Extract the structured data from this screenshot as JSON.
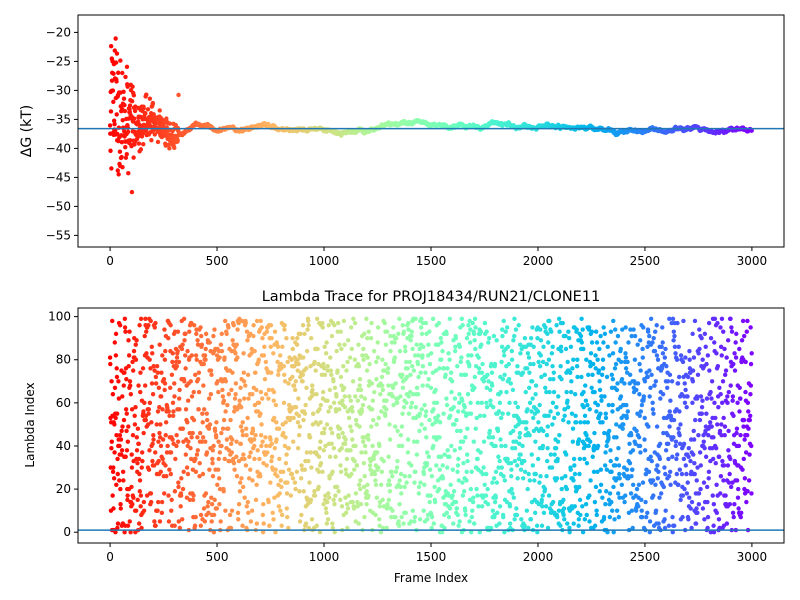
{
  "chart_data": [
    {
      "type": "scatter",
      "title": "",
      "xlabel": "",
      "ylabel": "ΔG (kT)",
      "xlim": [
        -150,
        3150
      ],
      "ylim": [
        -57,
        -17
      ],
      "xticks": [
        0,
        500,
        1000,
        1500,
        2000,
        2500,
        3000
      ],
      "yticks": [
        -55,
        -50,
        -45,
        -40,
        -35,
        -30,
        -25,
        -20
      ],
      "hline": -36.6,
      "hline_color": "#1f77b4",
      "colormap": "rainbow (red at frame 0 → violet at frame 3000)",
      "grid": false,
      "legend": "none",
      "n_points": 3000,
      "trend_keypoints": [
        {
          "x": 0,
          "y": -30
        },
        {
          "x": 50,
          "y": -36
        },
        {
          "x": 100,
          "y": -36
        },
        {
          "x": 150,
          "y": -36
        },
        {
          "x": 200,
          "y": -35
        },
        {
          "x": 250,
          "y": -37
        },
        {
          "x": 300,
          "y": -38
        },
        {
          "x": 350,
          "y": -37
        },
        {
          "x": 400,
          "y": -36
        },
        {
          "x": 450,
          "y": -36
        },
        {
          "x": 500,
          "y": -37
        },
        {
          "x": 550,
          "y": -36.5
        },
        {
          "x": 600,
          "y": -36.8
        },
        {
          "x": 650,
          "y": -36.5
        },
        {
          "x": 700,
          "y": -36
        },
        {
          "x": 750,
          "y": -36.2
        },
        {
          "x": 800,
          "y": -37
        },
        {
          "x": 850,
          "y": -36.5
        },
        {
          "x": 900,
          "y": -37
        },
        {
          "x": 950,
          "y": -36.5
        },
        {
          "x": 1000,
          "y": -36.8
        },
        {
          "x": 1050,
          "y": -37.3
        },
        {
          "x": 1100,
          "y": -37.3
        },
        {
          "x": 1150,
          "y": -37
        },
        {
          "x": 1200,
          "y": -37
        },
        {
          "x": 1250,
          "y": -36.5
        },
        {
          "x": 1300,
          "y": -36
        },
        {
          "x": 1350,
          "y": -35.7
        },
        {
          "x": 1400,
          "y": -35.5
        },
        {
          "x": 1500,
          "y": -35.6
        },
        {
          "x": 1600,
          "y": -36.2
        },
        {
          "x": 1700,
          "y": -36.2
        },
        {
          "x": 1800,
          "y": -35.9
        },
        {
          "x": 1900,
          "y": -36.2
        },
        {
          "x": 2000,
          "y": -36.3
        },
        {
          "x": 2100,
          "y": -36.2
        },
        {
          "x": 2200,
          "y": -36.4
        },
        {
          "x": 2300,
          "y": -36.8
        },
        {
          "x": 2400,
          "y": -37
        },
        {
          "x": 2500,
          "y": -37
        },
        {
          "x": 2600,
          "y": -37
        },
        {
          "x": 2700,
          "y": -36.6
        },
        {
          "x": 2800,
          "y": -37
        },
        {
          "x": 2900,
          "y": -36.8
        },
        {
          "x": 3000,
          "y": -36.8
        }
      ],
      "early_scatter_spread": [
        {
          "x": 0,
          "spread": 12
        },
        {
          "x": 100,
          "spread": 6
        },
        {
          "x": 200,
          "spread": 3
        },
        {
          "x": 300,
          "spread": 2
        },
        {
          "x": 450,
          "spread": 1
        },
        {
          "x": 700,
          "spread": 0.5
        },
        {
          "x": 3000,
          "spread": 0.4
        }
      ]
    },
    {
      "type": "scatter",
      "title": "Lambda Trace for PROJ18434/RUN21/CLONE11",
      "xlabel": "Frame Index",
      "ylabel": "Lambda Index",
      "xlim": [
        -150,
        3150
      ],
      "ylim": [
        -5,
        104
      ],
      "xticks": [
        0,
        500,
        1000,
        1500,
        2000,
        2500,
        3000
      ],
      "yticks": [
        0,
        20,
        40,
        60,
        80,
        100
      ],
      "hline": 1,
      "hline_color": "#1f77b4",
      "colormap": "rainbow (red at frame 0 → violet at frame 3000)",
      "grid": false,
      "legend": "none",
      "n_points": 3000,
      "lambda_range": [
        0,
        99
      ],
      "distribution": "lambda index values spread roughly uniformly across 0–99 for every frame"
    }
  ]
}
